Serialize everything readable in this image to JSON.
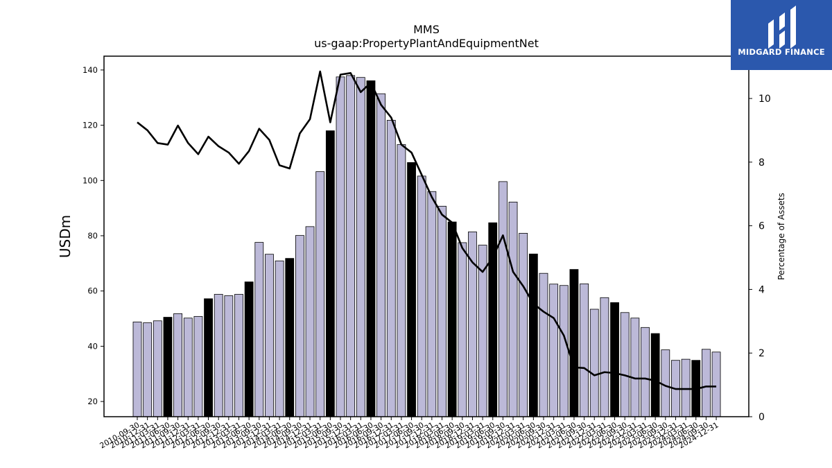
{
  "colors": {
    "bar_fill": "#bcb9d8",
    "bar_highlight": "#000000",
    "line": "#000000",
    "logo_bg": "#2b58ad"
  },
  "logo": {
    "text": "MIDGARD FINANCE"
  },
  "chart_data": {
    "type": "bar",
    "title": "MMS",
    "subtitle": "us-gaap:PropertyPlantAndEquipmentNet",
    "ylabel": "USDm",
    "y2label": "Percentage of Assets",
    "ylim": [
      14.5,
      145
    ],
    "y2lim": [
      0,
      11.33
    ],
    "yticks": [
      20,
      40,
      60,
      80,
      100,
      120,
      140
    ],
    "y2ticks": [
      0,
      2,
      4,
      6,
      8,
      10
    ],
    "highlight_rule": "fiscal year-end (06-30) bars drawn in black",
    "categories": [
      "2010-09-30",
      "2010-12-31",
      "2011-03-31",
      "2011-06-30",
      "2011-09-30",
      "2011-12-31",
      "2012-03-31",
      "2012-06-30",
      "2012-09-30",
      "2012-12-31",
      "2013-03-31",
      "2013-06-30",
      "2013-09-30",
      "2013-12-31",
      "2014-03-31",
      "2014-06-30",
      "2014-09-30",
      "2014-12-31",
      "2015-03-31",
      "2015-06-30",
      "2015-09-30",
      "2015-12-31",
      "2016-03-31",
      "2016-06-30",
      "2016-09-30",
      "2016-12-31",
      "2017-03-31",
      "2017-06-30",
      "2017-09-30",
      "2017-12-31",
      "2018-03-31",
      "2018-06-30",
      "2018-09-30",
      "2018-12-31",
      "2019-03-31",
      "2019-06-30",
      "2019-09-30",
      "2019-12-31",
      "2020-03-31",
      "2020-06-30",
      "2020-09-30",
      "2020-12-31",
      "2021-03-31",
      "2021-06-30",
      "2021-09-30",
      "2021-12-31",
      "2022-03-31",
      "2022-06-30",
      "2022-09-30",
      "2022-12-31",
      "2023-03-31",
      "2023-06-30",
      "2023-09-30",
      "2023-12-31",
      "2024-03-31",
      "2024-06-30",
      "2024-09-30",
      "2024-12-31"
    ],
    "series": [
      {
        "type": "bar",
        "axis": "left",
        "values": [
          48.8,
          48.5,
          49.2,
          50.5,
          51.8,
          50.2,
          50.8,
          57.2,
          58.8,
          58.3,
          58.8,
          63.3,
          77.6,
          73.3,
          70.9,
          71.8,
          80.1,
          83.3,
          103.2,
          118.0,
          137.5,
          138.0,
          137.3,
          136.1,
          131.4,
          121.8,
          113.0,
          106.5,
          101.6,
          96.0,
          90.7,
          85.0,
          77.5,
          81.4,
          76.6,
          84.7,
          99.6,
          92.2,
          80.9,
          73.4,
          66.4,
          62.5,
          62.0,
          67.8,
          62.6,
          53.4,
          57.6,
          55.8,
          52.2,
          50.2,
          46.8,
          44.6,
          38.7,
          34.9,
          35.3,
          34.9,
          38.9,
          37.9
        ]
      },
      {
        "type": "line",
        "axis": "right",
        "values": [
          9.25,
          9.0,
          8.6,
          8.55,
          9.15,
          8.6,
          8.25,
          8.8,
          8.5,
          8.3,
          7.95,
          8.35,
          9.05,
          8.7,
          7.9,
          7.8,
          8.9,
          9.35,
          10.85,
          9.25,
          10.75,
          10.8,
          10.2,
          10.5,
          9.8,
          9.4,
          8.55,
          8.3,
          7.6,
          6.9,
          6.35,
          6.1,
          5.3,
          4.85,
          4.55,
          5.0,
          5.7,
          4.55,
          4.1,
          3.55,
          3.3,
          3.1,
          2.55,
          1.55,
          1.53,
          1.3,
          1.4,
          1.37,
          1.3,
          1.2,
          1.2,
          1.13,
          0.97,
          0.87,
          0.87,
          0.87,
          0.95,
          0.95
        ]
      }
    ]
  }
}
